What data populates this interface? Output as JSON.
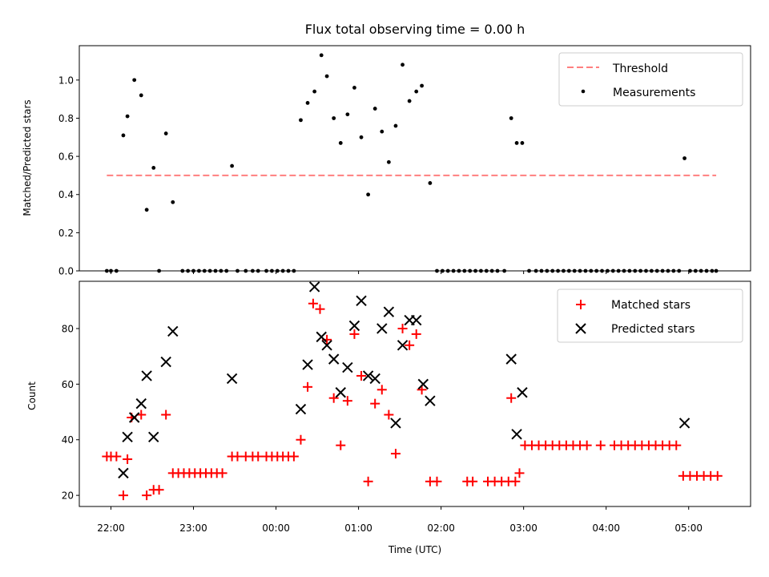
{
  "figure": {
    "title": "Flux total observing time = 0.00 h"
  },
  "chart_data": [
    {
      "type": "scatter",
      "title": "Flux total observing time = 0.00 h",
      "ylabel": "Matched/Predicted stars",
      "xlabel": "",
      "ylim": [
        0,
        1.18
      ],
      "yticks": [
        0.0,
        0.2,
        0.4,
        0.6,
        0.8,
        1.0
      ],
      "legend_position": "top-right",
      "grid": false,
      "threshold": {
        "name": "Threshold",
        "value": 0.5,
        "x_range": [
          "21:57",
          "05:20"
        ],
        "color": "#ff7f7f"
      },
      "series": [
        {
          "name": "Measurements",
          "marker": "dot",
          "color": "#000000",
          "points": [
            [
              "21:57",
              0.0
            ],
            [
              "22:00",
              0.0
            ],
            [
              "22:04",
              0.0
            ],
            [
              "22:09",
              0.71
            ],
            [
              "22:12",
              0.81
            ],
            [
              "22:17",
              1.0
            ],
            [
              "22:22",
              0.92
            ],
            [
              "22:26",
              0.32
            ],
            [
              "22:31",
              0.54
            ],
            [
              "22:35",
              0.0
            ],
            [
              "22:40",
              0.72
            ],
            [
              "22:45",
              0.36
            ],
            [
              "22:52",
              0.0
            ],
            [
              "22:56",
              0.0
            ],
            [
              "23:00",
              0.0
            ],
            [
              "23:04",
              0.0
            ],
            [
              "23:08",
              0.0
            ],
            [
              "23:12",
              0.0
            ],
            [
              "23:16",
              0.0
            ],
            [
              "23:20",
              0.0
            ],
            [
              "23:24",
              0.0
            ],
            [
              "23:28",
              0.55
            ],
            [
              "23:32",
              0.0
            ],
            [
              "23:38",
              0.0
            ],
            [
              "23:43",
              0.0
            ],
            [
              "23:47",
              0.0
            ],
            [
              "23:53",
              0.0
            ],
            [
              "23:57",
              0.0
            ],
            [
              "00:01",
              0.0
            ],
            [
              "00:05",
              0.0
            ],
            [
              "00:09",
              0.0
            ],
            [
              "00:13",
              0.0
            ],
            [
              "00:18",
              0.79
            ],
            [
              "00:23",
              0.88
            ],
            [
              "00:28",
              0.94
            ],
            [
              "00:33",
              1.13
            ],
            [
              "00:37",
              1.02
            ],
            [
              "00:42",
              0.8
            ],
            [
              "00:47",
              0.67
            ],
            [
              "00:52",
              0.82
            ],
            [
              "00:57",
              0.96
            ],
            [
              "01:02",
              0.7
            ],
            [
              "01:07",
              0.4
            ],
            [
              "01:12",
              0.85
            ],
            [
              "01:17",
              0.73
            ],
            [
              "01:22",
              0.57
            ],
            [
              "01:27",
              0.76
            ],
            [
              "01:32",
              1.08
            ],
            [
              "01:37",
              0.89
            ],
            [
              "01:42",
              0.94
            ],
            [
              "01:46",
              0.97
            ],
            [
              "01:52",
              0.46
            ],
            [
              "01:57",
              0.0
            ],
            [
              "02:01",
              0.0
            ],
            [
              "02:05",
              0.0
            ],
            [
              "02:09",
              0.0
            ],
            [
              "02:13",
              0.0
            ],
            [
              "02:17",
              0.0
            ],
            [
              "02:21",
              0.0
            ],
            [
              "02:25",
              0.0
            ],
            [
              "02:29",
              0.0
            ],
            [
              "02:33",
              0.0
            ],
            [
              "02:37",
              0.0
            ],
            [
              "02:41",
              0.0
            ],
            [
              "02:46",
              0.0
            ],
            [
              "02:51",
              0.8
            ],
            [
              "02:55",
              0.67
            ],
            [
              "02:59",
              0.67
            ],
            [
              "03:04",
              0.0
            ],
            [
              "03:09",
              0.0
            ],
            [
              "03:13",
              0.0
            ],
            [
              "03:17",
              0.0
            ],
            [
              "03:21",
              0.0
            ],
            [
              "03:25",
              0.0
            ],
            [
              "03:29",
              0.0
            ],
            [
              "03:33",
              0.0
            ],
            [
              "03:37",
              0.0
            ],
            [
              "03:41",
              0.0
            ],
            [
              "03:45",
              0.0
            ],
            [
              "03:49",
              0.0
            ],
            [
              "03:53",
              0.0
            ],
            [
              "03:57",
              0.0
            ],
            [
              "04:01",
              0.0
            ],
            [
              "04:05",
              0.0
            ],
            [
              "04:09",
              0.0
            ],
            [
              "04:13",
              0.0
            ],
            [
              "04:17",
              0.0
            ],
            [
              "04:21",
              0.0
            ],
            [
              "04:25",
              0.0
            ],
            [
              "04:29",
              0.0
            ],
            [
              "04:33",
              0.0
            ],
            [
              "04:37",
              0.0
            ],
            [
              "04:41",
              0.0
            ],
            [
              "04:45",
              0.0
            ],
            [
              "04:49",
              0.0
            ],
            [
              "04:53",
              0.0
            ],
            [
              "04:57",
              0.59
            ],
            [
              "05:01",
              0.0
            ],
            [
              "05:05",
              0.0
            ],
            [
              "05:09",
              0.0
            ],
            [
              "05:13",
              0.0
            ],
            [
              "05:17",
              0.0
            ],
            [
              "05:20",
              0.0
            ]
          ]
        }
      ]
    },
    {
      "type": "scatter",
      "title": "",
      "ylabel": "Count",
      "xlabel": "Time (UTC)",
      "ylim": [
        16,
        97
      ],
      "yticks": [
        20,
        40,
        60,
        80
      ],
      "xlim": [
        "21:37",
        "05:45"
      ],
      "xticks": [
        "22:00",
        "23:00",
        "00:00",
        "01:00",
        "02:00",
        "03:00",
        "04:00",
        "05:00"
      ],
      "legend_position": "top-right",
      "grid": false,
      "series": [
        {
          "name": "Matched stars",
          "marker": "plus",
          "color": "#ff0000",
          "points": [
            [
              "21:57",
              34
            ],
            [
              "22:00",
              34
            ],
            [
              "22:04",
              34
            ],
            [
              "22:09",
              20
            ],
            [
              "22:12",
              33
            ],
            [
              "22:15",
              48
            ],
            [
              "22:22",
              49
            ],
            [
              "22:26",
              20
            ],
            [
              "22:31",
              22
            ],
            [
              "22:35",
              22
            ],
            [
              "22:40",
              49
            ],
            [
              "22:45",
              28
            ],
            [
              "22:49",
              28
            ],
            [
              "22:53",
              28
            ],
            [
              "22:57",
              28
            ],
            [
              "23:01",
              28
            ],
            [
              "23:05",
              28
            ],
            [
              "23:09",
              28
            ],
            [
              "23:13",
              28
            ],
            [
              "23:17",
              28
            ],
            [
              "23:21",
              28
            ],
            [
              "23:28",
              34
            ],
            [
              "23:32",
              34
            ],
            [
              "23:38",
              34
            ],
            [
              "23:43",
              34
            ],
            [
              "23:47",
              34
            ],
            [
              "23:53",
              34
            ],
            [
              "23:57",
              34
            ],
            [
              "00:01",
              34
            ],
            [
              "00:05",
              34
            ],
            [
              "00:09",
              34
            ],
            [
              "00:13",
              34
            ],
            [
              "00:18",
              40
            ],
            [
              "00:23",
              59
            ],
            [
              "00:27",
              89
            ],
            [
              "00:32",
              87
            ],
            [
              "00:37",
              76
            ],
            [
              "00:42",
              55
            ],
            [
              "00:47",
              38
            ],
            [
              "00:52",
              54
            ],
            [
              "00:57",
              78
            ],
            [
              "01:02",
              63
            ],
            [
              "01:07",
              25
            ],
            [
              "01:12",
              53
            ],
            [
              "01:17",
              58
            ],
            [
              "01:22",
              49
            ],
            [
              "01:27",
              35
            ],
            [
              "01:32",
              80
            ],
            [
              "01:37",
              74
            ],
            [
              "01:42",
              78
            ],
            [
              "01:46",
              58
            ],
            [
              "01:52",
              25
            ],
            [
              "01:57",
              25
            ],
            [
              "02:19",
              25
            ],
            [
              "02:23",
              25
            ],
            [
              "02:34",
              25
            ],
            [
              "02:39",
              25
            ],
            [
              "02:44",
              25
            ],
            [
              "02:49",
              25
            ],
            [
              "02:54",
              25
            ],
            [
              "02:51",
              55
            ],
            [
              "02:57",
              28
            ],
            [
              "03:01",
              38
            ],
            [
              "03:06",
              38
            ],
            [
              "03:11",
              38
            ],
            [
              "03:16",
              38
            ],
            [
              "03:21",
              38
            ],
            [
              "03:26",
              38
            ],
            [
              "03:31",
              38
            ],
            [
              "03:36",
              38
            ],
            [
              "03:41",
              38
            ],
            [
              "03:46",
              38
            ],
            [
              "03:56",
              38
            ],
            [
              "04:06",
              38
            ],
            [
              "04:11",
              38
            ],
            [
              "04:16",
              38
            ],
            [
              "04:21",
              38
            ],
            [
              "04:26",
              38
            ],
            [
              "04:31",
              38
            ],
            [
              "04:36",
              38
            ],
            [
              "04:41",
              38
            ],
            [
              "04:46",
              38
            ],
            [
              "04:51",
              38
            ],
            [
              "04:56",
              27
            ],
            [
              "05:01",
              27
            ],
            [
              "05:06",
              27
            ],
            [
              "05:11",
              27
            ],
            [
              "05:16",
              27
            ],
            [
              "05:21",
              27
            ]
          ]
        },
        {
          "name": "Predicted stars",
          "marker": "x",
          "color": "#000000",
          "points": [
            [
              "22:09",
              28
            ],
            [
              "22:12",
              41
            ],
            [
              "22:17",
              48
            ],
            [
              "22:22",
              53
            ],
            [
              "22:26",
              63
            ],
            [
              "22:31",
              41
            ],
            [
              "22:40",
              68
            ],
            [
              "22:45",
              79
            ],
            [
              "23:28",
              62
            ],
            [
              "00:18",
              51
            ],
            [
              "00:23",
              67
            ],
            [
              "00:28",
              95
            ],
            [
              "00:33",
              77
            ],
            [
              "00:37",
              74
            ],
            [
              "00:42",
              69
            ],
            [
              "00:47",
              57
            ],
            [
              "00:52",
              66
            ],
            [
              "00:57",
              81
            ],
            [
              "01:02",
              90
            ],
            [
              "01:07",
              63
            ],
            [
              "01:12",
              62
            ],
            [
              "01:17",
              80
            ],
            [
              "01:22",
              86
            ],
            [
              "01:27",
              46
            ],
            [
              "01:32",
              74
            ],
            [
              "01:37",
              83
            ],
            [
              "01:42",
              83
            ],
            [
              "01:47",
              60
            ],
            [
              "01:52",
              54
            ],
            [
              "02:51",
              69
            ],
            [
              "02:55",
              42
            ],
            [
              "02:59",
              57
            ],
            [
              "04:57",
              46
            ]
          ]
        }
      ]
    }
  ]
}
